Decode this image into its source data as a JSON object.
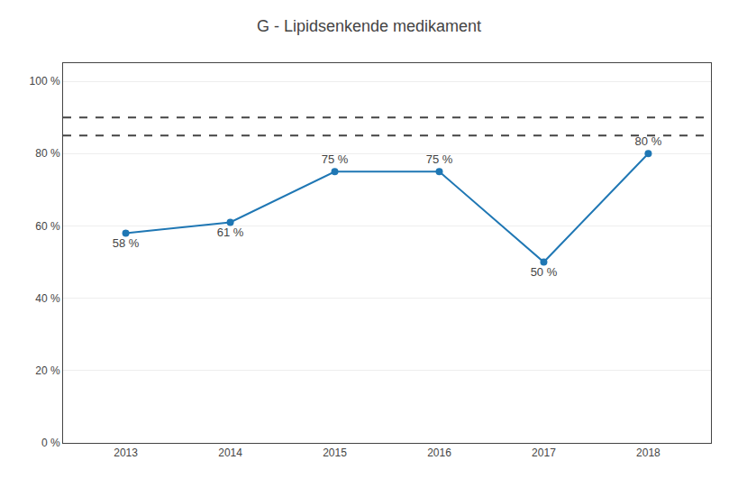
{
  "chart_data": {
    "type": "line",
    "title": "G - Lipidsenkende medikament",
    "x": [
      2013,
      2014,
      2015,
      2016,
      2017,
      2018
    ],
    "values": [
      58,
      61,
      75,
      75,
      50,
      80
    ],
    "value_labels": [
      "58 %",
      "61 %",
      "75 %",
      "75 %",
      "50 %",
      "80 %"
    ],
    "data_labels": true,
    "marker": "circle",
    "xlim": [
      2012.4,
      2018.6
    ],
    "xticks": [
      2013,
      2014,
      2015,
      2016,
      2017,
      2018
    ],
    "ylim": [
      0,
      105
    ],
    "yticks": [
      {
        "value": 0,
        "label": "0 %"
      },
      {
        "value": 20,
        "label": "20 %"
      },
      {
        "value": 40,
        "label": "40 %"
      },
      {
        "value": 60,
        "label": "60 %"
      },
      {
        "value": 80,
        "label": "80 %"
      },
      {
        "value": 100,
        "label": "100 %"
      }
    ],
    "reference_lines": [
      90,
      85
    ],
    "grid": "y"
  }
}
